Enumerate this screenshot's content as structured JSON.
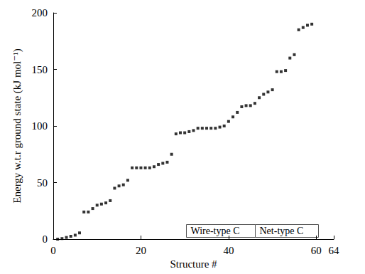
{
  "chart_data": {
    "type": "scatter",
    "x_label": "Structure #",
    "y_label": "Energy w.t.r ground state (kJ mol⁻¹)",
    "x": [
      1,
      2,
      3,
      4,
      5,
      6,
      7,
      8,
      9,
      10,
      11,
      12,
      13,
      14,
      15,
      16,
      17,
      18,
      19,
      20,
      21,
      22,
      23,
      24,
      25,
      26,
      27,
      28,
      29,
      30,
      31,
      32,
      33,
      34,
      35,
      36,
      37,
      38,
      39,
      40,
      41,
      42,
      43,
      44,
      45,
      46,
      47,
      48,
      49,
      50,
      51,
      52,
      53,
      54,
      55,
      56,
      57,
      58,
      59
    ],
    "values": [
      0,
      0.5,
      1.5,
      2.5,
      3.5,
      5.5,
      24,
      24,
      27,
      30,
      31,
      32,
      34,
      45,
      47,
      48,
      52,
      63,
      63,
      63,
      63,
      63,
      64,
      66,
      67,
      68,
      75,
      93,
      94,
      94,
      95,
      96,
      98,
      98,
      98,
      98,
      98,
      99,
      100,
      104,
      108,
      112,
      117,
      118,
      118,
      120,
      125,
      128,
      130,
      132,
      148,
      148,
      149,
      160,
      163,
      185,
      187,
      189,
      190
    ],
    "color": "#000000",
    "marker": "square",
    "xlim": [
      0,
      64
    ],
    "xticks": [
      0,
      20,
      40,
      60
    ],
    "ylim": [
      0,
      200
    ],
    "yticks": [
      0,
      50,
      100,
      150,
      200
    ],
    "grid": false,
    "annotations": [
      "Wire-type C",
      "Net-type C"
    ]
  }
}
